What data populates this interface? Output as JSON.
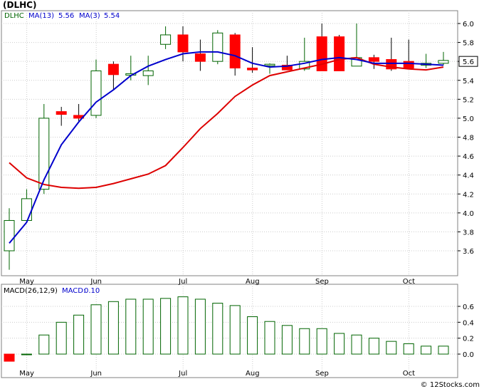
{
  "title": "(DLHC)",
  "copyright": "© 12Stocks.com",
  "price_panel": {
    "symbol": "DLHC",
    "ma13_label": "MA(13)",
    "ma13_value": "5.56",
    "ma3_label": "MA(3)",
    "ma3_value": "5.54",
    "current_price": "5.6"
  },
  "macd_panel": {
    "label": "MACD(26,12,9)",
    "macd_label": "MACD:",
    "macd_value": "0.10"
  },
  "colors": {
    "up_candle": "#006400",
    "down_candle": "#ff0000",
    "ma13_line": "#0000cc",
    "ma3_line": "#dd0000",
    "macd_bar": "#006400",
    "macd_neg": "#ff0000",
    "grid": "#cccccc"
  },
  "chart_data": [
    {
      "type": "candlestick",
      "y_ticks": [
        "3.6",
        "3.8",
        "4.0",
        "4.2",
        "4.4",
        "4.6",
        "4.8",
        "5.0",
        "5.2",
        "5.4",
        "5.6",
        "5.8",
        "6.0"
      ],
      "ylim": [
        3.4,
        6.1
      ],
      "x_ticks": [
        {
          "label": "May",
          "index": 1
        },
        {
          "label": "Jun",
          "index": 5
        },
        {
          "label": "Jul",
          "index": 10
        },
        {
          "label": "Aug",
          "index": 14
        },
        {
          "label": "Sep",
          "index": 18
        },
        {
          "label": "Oct",
          "index": 23
        }
      ],
      "candles": [
        {
          "o": 3.6,
          "h": 4.05,
          "l": 3.4,
          "c": 3.92
        },
        {
          "o": 3.92,
          "h": 4.25,
          "l": 3.9,
          "c": 4.15
        },
        {
          "o": 4.25,
          "h": 5.15,
          "l": 4.2,
          "c": 5.0
        },
        {
          "o": 5.07,
          "h": 5.12,
          "l": 4.92,
          "c": 5.04
        },
        {
          "o": 5.03,
          "h": 5.15,
          "l": 4.97,
          "c": 5.0
        },
        {
          "o": 5.03,
          "h": 5.62,
          "l": 5.0,
          "c": 5.5
        },
        {
          "o": 5.57,
          "h": 5.6,
          "l": 5.3,
          "c": 5.46
        },
        {
          "o": 5.46,
          "h": 5.66,
          "l": 5.4,
          "c": 5.47
        },
        {
          "o": 5.45,
          "h": 5.66,
          "l": 5.35,
          "c": 5.5
        },
        {
          "o": 5.78,
          "h": 5.97,
          "l": 5.73,
          "c": 5.88
        },
        {
          "o": 5.88,
          "h": 5.97,
          "l": 5.6,
          "c": 5.7
        },
        {
          "o": 5.68,
          "h": 5.83,
          "l": 5.5,
          "c": 5.6
        },
        {
          "o": 5.6,
          "h": 5.93,
          "l": 5.57,
          "c": 5.9
        },
        {
          "o": 5.88,
          "h": 5.9,
          "l": 5.45,
          "c": 5.53
        },
        {
          "o": 5.53,
          "h": 5.75,
          "l": 5.48,
          "c": 5.51
        },
        {
          "o": 5.56,
          "h": 5.58,
          "l": 5.47,
          "c": 5.57
        },
        {
          "o": 5.56,
          "h": 5.66,
          "l": 5.52,
          "c": 5.51
        },
        {
          "o": 5.52,
          "h": 5.85,
          "l": 5.5,
          "c": 5.6
        },
        {
          "o": 5.86,
          "h": 6.0,
          "l": 5.5,
          "c": 5.5
        },
        {
          "o": 5.86,
          "h": 5.88,
          "l": 5.5,
          "c": 5.5
        },
        {
          "o": 5.55,
          "h": 6.0,
          "l": 5.55,
          "c": 5.64
        },
        {
          "o": 5.64,
          "h": 5.67,
          "l": 5.52,
          "c": 5.6
        },
        {
          "o": 5.62,
          "h": 5.85,
          "l": 5.5,
          "c": 5.52
        },
        {
          "o": 5.6,
          "h": 5.83,
          "l": 5.52,
          "c": 5.53
        },
        {
          "o": 5.56,
          "h": 5.68,
          "l": 5.53,
          "c": 5.58
        },
        {
          "o": 5.58,
          "h": 5.7,
          "l": 5.56,
          "c": 5.61
        }
      ],
      "ma13": [
        3.68,
        3.9,
        4.35,
        4.72,
        4.96,
        5.17,
        5.3,
        5.45,
        5.55,
        5.62,
        5.68,
        5.7,
        5.7,
        5.66,
        5.58,
        5.54,
        5.55,
        5.58,
        5.62,
        5.64,
        5.62,
        5.58,
        5.58,
        5.58,
        5.57,
        5.56
      ],
      "ma3": [
        4.53,
        4.37,
        4.3,
        4.27,
        4.26,
        4.27,
        4.31,
        4.36,
        4.41,
        4.5,
        4.69,
        4.89,
        5.05,
        5.23,
        5.35,
        5.45,
        5.49,
        5.53,
        5.57,
        5.62,
        5.64,
        5.57,
        5.54,
        5.52,
        5.51,
        5.54
      ]
    },
    {
      "type": "bar",
      "y_ticks": [
        "0.0",
        "0.2",
        "0.4",
        "0.6"
      ],
      "ylim": [
        -0.14,
        0.75
      ],
      "values": [
        -0.09,
        0.0,
        0.24,
        0.4,
        0.49,
        0.62,
        0.66,
        0.69,
        0.69,
        0.7,
        0.72,
        0.69,
        0.64,
        0.61,
        0.47,
        0.41,
        0.36,
        0.32,
        0.32,
        0.26,
        0.24,
        0.2,
        0.16,
        0.13,
        0.1,
        0.1
      ]
    }
  ]
}
